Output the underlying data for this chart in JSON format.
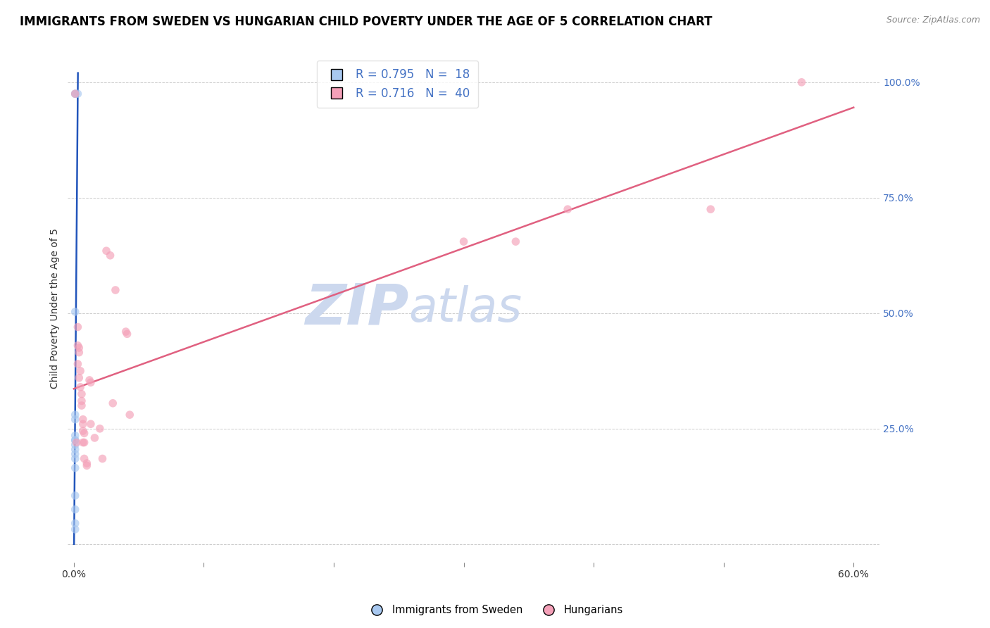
{
  "title": "IMMIGRANTS FROM SWEDEN VS HUNGARIAN CHILD POVERTY UNDER THE AGE OF 5 CORRELATION CHART",
  "source": "Source: ZipAtlas.com",
  "ylabel": "Child Poverty Under the Age of 5",
  "xlim": [
    -0.005,
    0.62
  ],
  "ylim": [
    -0.04,
    1.06
  ],
  "right_ytick_values": [
    0.25,
    0.5,
    0.75,
    1.0
  ],
  "right_ytick_labels": [
    "25.0%",
    "50.0%",
    "75.0%",
    "100.0%"
  ],
  "xtick_values": [
    0.0,
    0.1,
    0.2,
    0.3,
    0.4,
    0.5,
    0.6
  ],
  "xtick_labels": [
    "0.0%",
    "",
    "",
    "",
    "",
    "",
    "60.0%"
  ],
  "watermark_zip": "ZIP",
  "watermark_atlas": "atlas",
  "legend_sweden": "R = 0.795   N =  18",
  "legend_hungary": "R = 0.716   N =  40",
  "sweden_x": [
    0.001,
    0.001,
    0.003,
    0.001,
    0.001,
    0.001,
    0.001,
    0.001,
    0.001,
    0.001,
    0.001,
    0.001,
    0.001,
    0.001,
    0.001,
    0.001,
    0.001,
    0.001
  ],
  "sweden_y": [
    0.975,
    0.975,
    0.975,
    0.503,
    0.28,
    0.27,
    0.235,
    0.225,
    0.225,
    0.215,
    0.205,
    0.195,
    0.185,
    0.165,
    0.105,
    0.075,
    0.045,
    0.032
  ],
  "hungary_x": [
    0.001,
    0.002,
    0.003,
    0.003,
    0.003,
    0.004,
    0.004,
    0.004,
    0.005,
    0.005,
    0.006,
    0.006,
    0.006,
    0.007,
    0.007,
    0.007,
    0.007,
    0.008,
    0.008,
    0.008,
    0.01,
    0.01,
    0.012,
    0.013,
    0.013,
    0.016,
    0.02,
    0.022,
    0.025,
    0.028,
    0.03,
    0.032,
    0.04,
    0.041,
    0.043,
    0.3,
    0.34,
    0.38,
    0.49,
    0.56
  ],
  "hungary_y": [
    0.975,
    0.22,
    0.47,
    0.43,
    0.39,
    0.425,
    0.415,
    0.36,
    0.375,
    0.34,
    0.325,
    0.31,
    0.3,
    0.27,
    0.26,
    0.245,
    0.22,
    0.24,
    0.22,
    0.185,
    0.175,
    0.17,
    0.355,
    0.35,
    0.26,
    0.23,
    0.25,
    0.185,
    0.635,
    0.625,
    0.305,
    0.55,
    0.46,
    0.455,
    0.28,
    0.655,
    0.655,
    0.725,
    0.725,
    1.0
  ],
  "sweden_color": "#a8c8f0",
  "hungary_color": "#f4a0b8",
  "sweden_line_color": "#2255bb",
  "hungary_line_color": "#e06080",
  "dot_size": 70,
  "dot_alpha": 0.65,
  "background_color": "#ffffff",
  "grid_color": "#cccccc",
  "title_fontsize": 12,
  "axis_label_fontsize": 10,
  "tick_fontsize": 10,
  "right_tick_color": "#4472c4",
  "watermark_color": "#ccd8ee",
  "watermark_fontsize_zip": 58,
  "watermark_fontsize_atlas": 48
}
